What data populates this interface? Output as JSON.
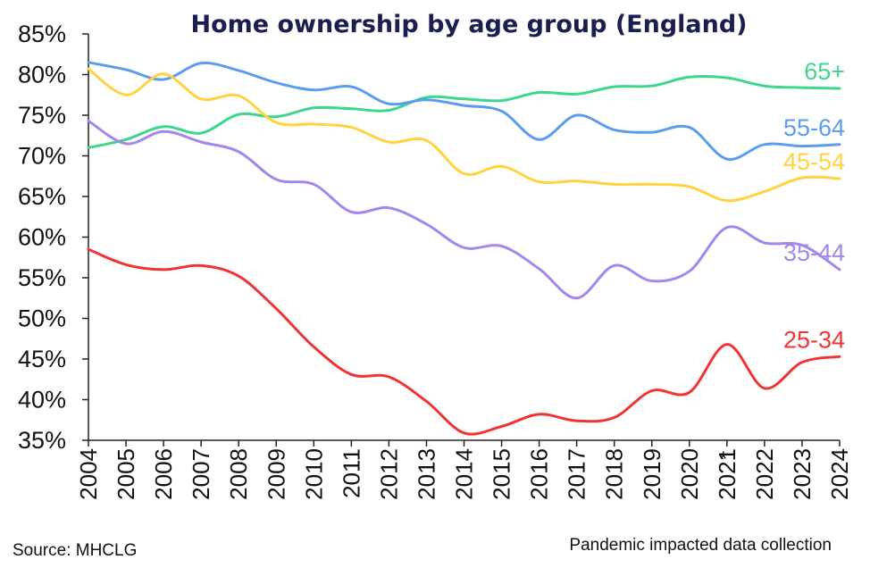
{
  "chart_data": {
    "type": "line",
    "title": "Home ownership by age group (England)",
    "xlabel": "",
    "ylabel": "",
    "ylim": [
      35,
      85
    ],
    "yticks": [
      "35%",
      "40%",
      "45%",
      "50%",
      "55%",
      "60%",
      "65%",
      "70%",
      "75%",
      "80%",
      "85%"
    ],
    "x": [
      "2004",
      "2005",
      "2006",
      "2007",
      "2008",
      "2009",
      "2010",
      "2011",
      "2012",
      "2013",
      "2014",
      "2015",
      "2016",
      "2017",
      "2018",
      "2019",
      "2020",
      "2021",
      "2022",
      "2023",
      "2024"
    ],
    "grid": false,
    "series": [
      {
        "name": "65+",
        "color": "#3dd68c",
        "values": [
          71.0,
          72.0,
          73.6,
          72.8,
          75.1,
          74.8,
          75.9,
          75.8,
          75.6,
          77.2,
          77.0,
          76.8,
          77.8,
          77.6,
          78.5,
          78.6,
          79.7,
          79.6,
          78.6,
          78.4,
          78.3
        ]
      },
      {
        "name": "55-64",
        "color": "#5b9cf0",
        "values": [
          81.5,
          80.6,
          79.4,
          81.4,
          80.5,
          79.0,
          78.1,
          78.5,
          76.4,
          76.9,
          76.2,
          75.5,
          72.0,
          75.0,
          73.2,
          72.9,
          73.5,
          69.6,
          71.4,
          71.2,
          71.4
        ]
      },
      {
        "name": "45-54",
        "color": "#ffd23f",
        "values": [
          80.7,
          77.5,
          80.1,
          77.0,
          77.4,
          74.1,
          73.9,
          73.5,
          71.7,
          71.9,
          67.8,
          68.7,
          66.8,
          66.9,
          66.5,
          66.5,
          66.2,
          64.5,
          65.6,
          67.3,
          67.2
        ]
      },
      {
        "name": "35-44",
        "color": "#a586ed",
        "values": [
          74.3,
          71.5,
          73.0,
          71.7,
          70.5,
          67.1,
          66.5,
          63.1,
          63.6,
          61.6,
          58.7,
          58.9,
          56.1,
          52.5,
          56.5,
          54.6,
          55.8,
          61.2,
          59.3,
          59.0,
          56.0
        ]
      },
      {
        "name": "25-34",
        "color": "#f03333",
        "values": [
          58.5,
          56.6,
          56.0,
          56.5,
          55.2,
          51.2,
          46.5,
          43.1,
          42.8,
          39.8,
          35.9,
          36.7,
          38.2,
          37.4,
          37.8,
          41.1,
          40.9,
          46.8,
          41.4,
          44.6,
          45.3
        ]
      }
    ],
    "annotations": [
      {
        "text": "*",
        "x": "2021",
        "note": "Pandemic impacted data collection"
      }
    ],
    "source": "Source: MHCLG",
    "footnote": "Pandemic impacted data collection",
    "marker_symbol": "*"
  }
}
